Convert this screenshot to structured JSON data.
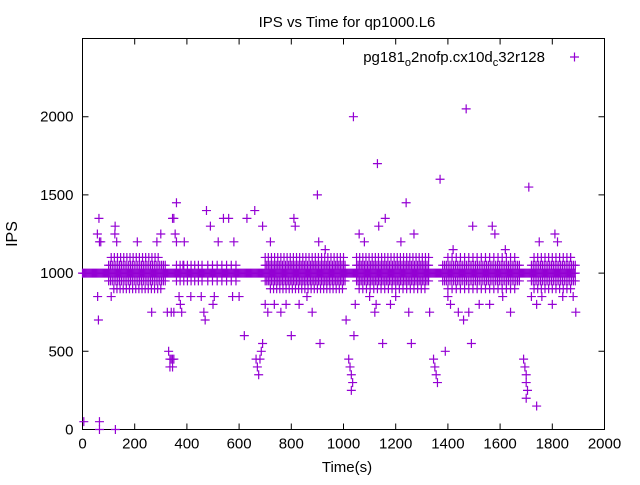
{
  "chart_data": {
    "type": "scatter",
    "title": "IPS vs Time for qp1000.L6",
    "xlabel": "Time(s)",
    "ylabel": "IPS",
    "xlim": [
      0,
      2000
    ],
    "ylim": [
      0,
      2500
    ],
    "xticks": [
      "0",
      "200",
      "400",
      "600",
      "800",
      "1000",
      "1200",
      "1400",
      "1600",
      "1800",
      "2000"
    ],
    "yticks": [
      "0",
      "500",
      "1000",
      "1500",
      "2000"
    ],
    "xtick_values": [
      0,
      200,
      400,
      600,
      800,
      1000,
      1200,
      1400,
      1600,
      1800,
      2000
    ],
    "ytick_values": [
      0,
      500,
      1000,
      1500,
      2000
    ],
    "grid": false,
    "legend_placement": "top-right",
    "color": "#9400d3",
    "series": [
      {
        "name_parts": [
          "pg181",
          "o",
          "2nofp.cx10d",
          "c",
          "32r128"
        ],
        "bands": [
          {
            "y": 1000,
            "x_range": [
              0,
              1890
            ],
            "step": 4
          },
          {
            "y": 1050,
            "x_range": [
              100,
              320
            ],
            "step": 7
          },
          {
            "y": 950,
            "x_range": [
              100,
              320
            ],
            "step": 7
          },
          {
            "y": 1100,
            "x_range": [
              110,
              300
            ],
            "step": 12
          },
          {
            "y": 900,
            "x_range": [
              120,
              310
            ],
            "step": 12
          },
          {
            "y": 1050,
            "x_range": [
              360,
              460
            ],
            "step": 14
          },
          {
            "y": 950,
            "x_range": [
              360,
              460
            ],
            "step": 14
          },
          {
            "y": 1050,
            "x_range": [
              480,
              600
            ],
            "step": 18
          },
          {
            "y": 950,
            "x_range": [
              480,
              600
            ],
            "step": 18
          },
          {
            "y": 1100,
            "x_range": [
              700,
              1010
            ],
            "step": 12
          },
          {
            "y": 1050,
            "x_range": [
              700,
              1010
            ],
            "step": 6
          },
          {
            "y": 950,
            "x_range": [
              700,
              1010
            ],
            "step": 6
          },
          {
            "y": 900,
            "x_range": [
              720,
              1000
            ],
            "step": 12
          },
          {
            "y": 1100,
            "x_range": [
              1050,
              1330
            ],
            "step": 12
          },
          {
            "y": 1050,
            "x_range": [
              1050,
              1330
            ],
            "step": 6
          },
          {
            "y": 950,
            "x_range": [
              1050,
              1330
            ],
            "step": 6
          },
          {
            "y": 900,
            "x_range": [
              1060,
              1320
            ],
            "step": 14
          },
          {
            "y": 1050,
            "x_range": [
              1380,
              1680
            ],
            "step": 7
          },
          {
            "y": 950,
            "x_range": [
              1380,
              1680
            ],
            "step": 7
          },
          {
            "y": 1100,
            "x_range": [
              1400,
              1660
            ],
            "step": 16
          },
          {
            "y": 900,
            "x_range": [
              1400,
              1660
            ],
            "step": 16
          },
          {
            "y": 1050,
            "x_range": [
              1720,
              1890
            ],
            "step": 7
          },
          {
            "y": 950,
            "x_range": [
              1720,
              1890
            ],
            "step": 7
          },
          {
            "y": 1100,
            "x_range": [
              1730,
              1880
            ],
            "step": 14
          },
          {
            "y": 900,
            "x_range": [
              1730,
              1880
            ],
            "step": 14
          }
        ],
        "points": [
          [
            5,
            50
          ],
          [
            57,
            1250
          ],
          [
            61,
            700
          ],
          [
            58,
            850
          ],
          [
            63,
            1350
          ],
          [
            65,
            50
          ],
          [
            65,
            0
          ],
          [
            126,
            0
          ],
          [
            125,
            1300
          ],
          [
            124,
            1250
          ],
          [
            65,
            1200
          ],
          [
            70,
            1200
          ],
          [
            110,
            850
          ],
          [
            131,
            1200
          ],
          [
            210,
            1200
          ],
          [
            265,
            750
          ],
          [
            285,
            1200
          ],
          [
            300,
            1250
          ],
          [
            330,
            500
          ],
          [
            335,
            450
          ],
          [
            340,
            450
          ],
          [
            345,
            450
          ],
          [
            350,
            450
          ],
          [
            335,
            400
          ],
          [
            345,
            400
          ],
          [
            325,
            750
          ],
          [
            340,
            750
          ],
          [
            350,
            750
          ],
          [
            345,
            1350
          ],
          [
            350,
            1350
          ],
          [
            355,
            1250
          ],
          [
            360,
            1450
          ],
          [
            360,
            1200
          ],
          [
            375,
            800
          ],
          [
            380,
            750
          ],
          [
            370,
            850
          ],
          [
            385,
            1050
          ],
          [
            390,
            1200
          ],
          [
            415,
            850
          ],
          [
            455,
            850
          ],
          [
            465,
            750
          ],
          [
            470,
            700
          ],
          [
            475,
            1400
          ],
          [
            490,
            1300
          ],
          [
            500,
            800
          ],
          [
            505,
            850
          ],
          [
            520,
            1200
          ],
          [
            540,
            1350
          ],
          [
            560,
            1350
          ],
          [
            575,
            850
          ],
          [
            580,
            1200
          ],
          [
            600,
            850
          ],
          [
            620,
            600
          ],
          [
            630,
            1350
          ],
          [
            660,
            1400
          ],
          [
            665,
            450
          ],
          [
            670,
            400
          ],
          [
            675,
            350
          ],
          [
            680,
            450
          ],
          [
            685,
            500
          ],
          [
            690,
            550
          ],
          [
            690,
            1300
          ],
          [
            700,
            800
          ],
          [
            710,
            750
          ],
          [
            720,
            1200
          ],
          [
            735,
            800
          ],
          [
            760,
            750
          ],
          [
            780,
            800
          ],
          [
            800,
            600
          ],
          [
            810,
            1350
          ],
          [
            815,
            1300
          ],
          [
            830,
            800
          ],
          [
            860,
            850
          ],
          [
            880,
            750
          ],
          [
            900,
            1500
          ],
          [
            905,
            1200
          ],
          [
            910,
            550
          ],
          [
            930,
            1150
          ],
          [
            1010,
            700
          ],
          [
            1020,
            450
          ],
          [
            1025,
            400
          ],
          [
            1030,
            350
          ],
          [
            1035,
            300
          ],
          [
            1030,
            250
          ],
          [
            1038,
            2000
          ],
          [
            1040,
            600
          ],
          [
            1045,
            800
          ],
          [
            1060,
            1250
          ],
          [
            1080,
            1200
          ],
          [
            1100,
            850
          ],
          [
            1120,
            750
          ],
          [
            1125,
            800
          ],
          [
            1130,
            1700
          ],
          [
            1135,
            1300
          ],
          [
            1150,
            550
          ],
          [
            1160,
            1350
          ],
          [
            1180,
            800
          ],
          [
            1200,
            850
          ],
          [
            1220,
            1200
          ],
          [
            1240,
            1450
          ],
          [
            1250,
            750
          ],
          [
            1260,
            550
          ],
          [
            1270,
            1250
          ],
          [
            1330,
            750
          ],
          [
            1345,
            450
          ],
          [
            1350,
            400
          ],
          [
            1355,
            350
          ],
          [
            1360,
            300
          ],
          [
            1370,
            1600
          ],
          [
            1390,
            500
          ],
          [
            1400,
            850
          ],
          [
            1410,
            800
          ],
          [
            1420,
            1150
          ],
          [
            1440,
            750
          ],
          [
            1460,
            700
          ],
          [
            1470,
            2050
          ],
          [
            1480,
            750
          ],
          [
            1490,
            550
          ],
          [
            1495,
            1300
          ],
          [
            1520,
            800
          ],
          [
            1560,
            800
          ],
          [
            1570,
            1300
          ],
          [
            1580,
            1250
          ],
          [
            1610,
            850
          ],
          [
            1620,
            1150
          ],
          [
            1640,
            750
          ],
          [
            1690,
            450
          ],
          [
            1695,
            400
          ],
          [
            1700,
            350
          ],
          [
            1700,
            300
          ],
          [
            1705,
            250
          ],
          [
            1700,
            200
          ],
          [
            1710,
            1550
          ],
          [
            1720,
            850
          ],
          [
            1740,
            800
          ],
          [
            1740,
            150
          ],
          [
            1750,
            1200
          ],
          [
            1760,
            850
          ],
          [
            1800,
            800
          ],
          [
            1810,
            1250
          ],
          [
            1820,
            1200
          ],
          [
            1840,
            850
          ],
          [
            1870,
            1100
          ],
          [
            1880,
            850
          ],
          [
            1890,
            750
          ]
        ]
      }
    ]
  }
}
